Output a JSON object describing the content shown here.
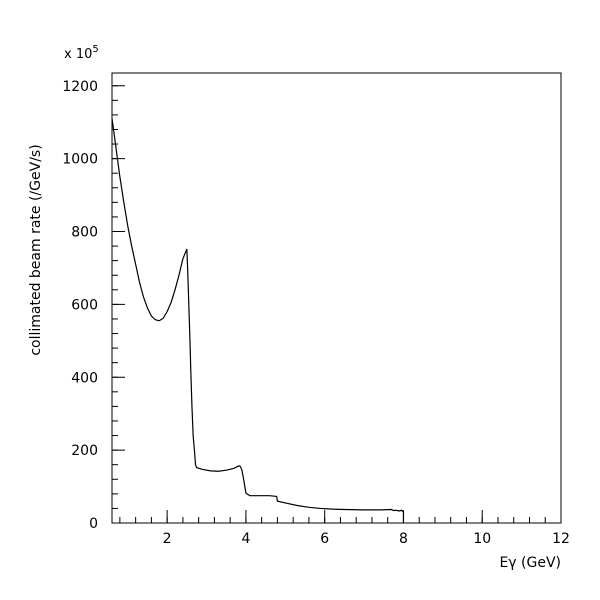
{
  "chart_data": {
    "type": "line",
    "title": "",
    "xlabel": "Eγ (GeV)",
    "ylabel": "collimated beam rate (/GeV/s)",
    "y_multiplier_label": "x 10",
    "y_multiplier_exponent": "5",
    "xlim": [
      0.6,
      12
    ],
    "ylim": [
      0,
      1235
    ],
    "grid": false,
    "legend": "none",
    "x_ticks": [
      2,
      4,
      6,
      8,
      10,
      12
    ],
    "y_ticks": [
      0,
      200,
      400,
      600,
      800,
      1000,
      1200
    ],
    "x_tick_labels": [
      "2",
      "4",
      "6",
      "8",
      "10",
      "12"
    ],
    "y_tick_labels": [
      "0",
      "200",
      "400",
      "600",
      "800",
      "1000",
      "1200"
    ],
    "series": [
      {
        "x": [
          0.6,
          0.64,
          0.7,
          0.8,
          0.9,
          1.0,
          1.1,
          1.2,
          1.3,
          1.4,
          1.5,
          1.6,
          1.7,
          1.8,
          1.9,
          2.0,
          2.1,
          2.2,
          2.3,
          2.4,
          2.5,
          2.52,
          2.55,
          2.58,
          2.6,
          2.63,
          2.66,
          2.7,
          2.72,
          2.75,
          2.9,
          3.1,
          3.3,
          3.5,
          3.7,
          3.82,
          3.86,
          3.9,
          3.95,
          4.0,
          4.1,
          4.3,
          4.6,
          4.78,
          4.8,
          5.0,
          5.3,
          5.6,
          5.9,
          6.2,
          6.5,
          7.0,
          7.4,
          7.7,
          7.75,
          7.8,
          7.9,
          7.95,
          8.0
        ],
        "y": [
          1110,
          1080,
          1030,
          950,
          880,
          815,
          760,
          710,
          660,
          620,
          590,
          568,
          558,
          555,
          562,
          580,
          605,
          640,
          680,
          725,
          752,
          700,
          600,
          500,
          420,
          320,
          240,
          190,
          160,
          152,
          147,
          143,
          142,
          145,
          150,
          157,
          155,
          145,
          115,
          82,
          75,
          75,
          75,
          73,
          60,
          55,
          48,
          43,
          40,
          38,
          37,
          36,
          36,
          37,
          34,
          35,
          33,
          35,
          30
        ],
        "color": "#000000"
      }
    ]
  }
}
